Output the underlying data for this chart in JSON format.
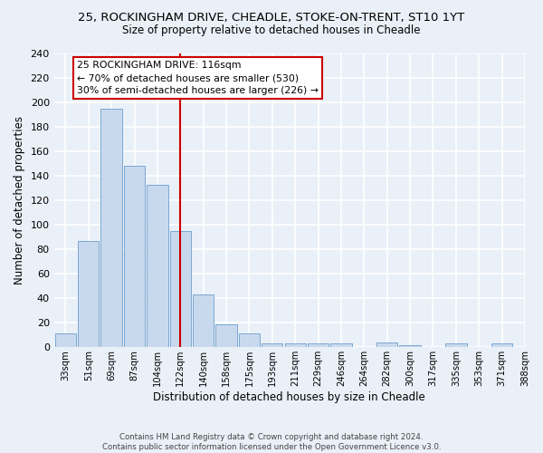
{
  "title_line1": "25, ROCKINGHAM DRIVE, CHEADLE, STOKE-ON-TRENT, ST10 1YT",
  "title_line2": "Size of property relative to detached houses in Cheadle",
  "xlabel": "Distribution of detached houses by size in Cheadle",
  "ylabel": "Number of detached properties",
  "bin_labels": [
    "33sqm",
    "51sqm",
    "69sqm",
    "87sqm",
    "104sqm",
    "122sqm",
    "140sqm",
    "158sqm",
    "175sqm",
    "193sqm",
    "211sqm",
    "229sqm",
    "246sqm",
    "264sqm",
    "282sqm",
    "300sqm",
    "317sqm",
    "335sqm",
    "353sqm",
    "371sqm",
    "388sqm"
  ],
  "bar_values": [
    11,
    87,
    195,
    148,
    133,
    95,
    43,
    19,
    11,
    3,
    3,
    3,
    3,
    0,
    4,
    2,
    0,
    3,
    0,
    3
  ],
  "bar_color": "#c9d9ed",
  "bar_edge_color": "#7aa8d2",
  "background_color": "#eaf0f8",
  "grid_color": "#ffffff",
  "vline_index": 5,
  "vline_color": "#cc0000",
  "annotation_text": "25 ROCKINGHAM DRIVE: 116sqm\n← 70% of detached houses are smaller (530)\n30% of semi-detached houses are larger (226) →",
  "annotation_box_color": "#ffffff",
  "annotation_box_edge": "#cc0000",
  "footnote": "Contains HM Land Registry data © Crown copyright and database right 2024.\nContains public sector information licensed under the Open Government Licence v3.0.",
  "ylim": [
    0,
    240
  ],
  "yticks": [
    0,
    20,
    40,
    60,
    80,
    100,
    120,
    140,
    160,
    180,
    200,
    220,
    240
  ]
}
